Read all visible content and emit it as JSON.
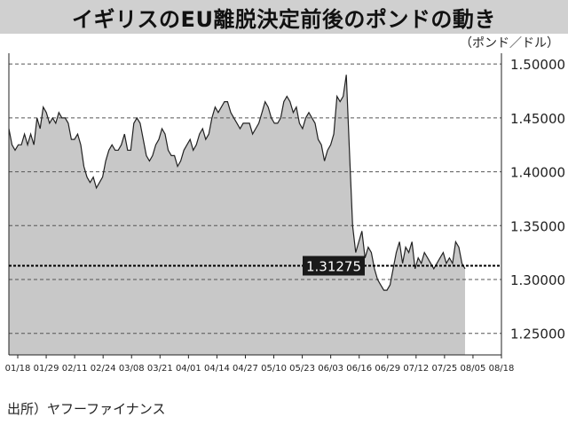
{
  "header": {
    "title": "イギリスのEU離脱決定前後のポンドの動き",
    "unit": "（ポンド／ドル）",
    "source": "出所）ヤフーファイナンス"
  },
  "colors": {
    "area_fill": "#c8c8c8",
    "line": "#222222",
    "grid": "#555555",
    "title_bg": "#d0d0d0",
    "label_bg": "#1a1a1a",
    "label_text": "#ffffff"
  },
  "chart_data": {
    "type": "area",
    "title": "イギリスのEU離脱決定前後のポンドの動き",
    "ylabel": "（ポンド／ドル）",
    "xlabel": "",
    "ylim": [
      1.23,
      1.51
    ],
    "yticks": [
      1.25,
      1.3,
      1.35,
      1.4,
      1.45,
      1.5
    ],
    "ytick_labels": [
      "1.25000",
      "1.30000",
      "1.35000",
      "1.40000",
      "1.45000",
      "1.50000"
    ],
    "xticks": [
      "01/18",
      "01/29",
      "02/11",
      "02/24",
      "03/08",
      "03/21",
      "04/01",
      "04/14",
      "04/27",
      "05/10",
      "05/23",
      "06/03",
      "06/16",
      "06/29",
      "07/12",
      "07/25",
      "08/05",
      "08/18"
    ],
    "grid": true,
    "reference_line": {
      "value": 1.31275,
      "label": "1.31275"
    },
    "y": [
      1.44,
      1.425,
      1.42,
      1.425,
      1.425,
      1.435,
      1.425,
      1.435,
      1.425,
      1.45,
      1.44,
      1.46,
      1.455,
      1.445,
      1.45,
      1.445,
      1.455,
      1.45,
      1.45,
      1.445,
      1.43,
      1.43,
      1.435,
      1.425,
      1.405,
      1.395,
      1.39,
      1.395,
      1.385,
      1.39,
      1.395,
      1.41,
      1.42,
      1.425,
      1.42,
      1.42,
      1.425,
      1.435,
      1.42,
      1.42,
      1.445,
      1.45,
      1.445,
      1.43,
      1.415,
      1.41,
      1.415,
      1.425,
      1.43,
      1.44,
      1.435,
      1.42,
      1.415,
      1.415,
      1.405,
      1.41,
      1.42,
      1.425,
      1.43,
      1.42,
      1.425,
      1.435,
      1.44,
      1.43,
      1.435,
      1.45,
      1.46,
      1.455,
      1.46,
      1.465,
      1.465,
      1.455,
      1.45,
      1.445,
      1.44,
      1.445,
      1.445,
      1.445,
      1.435,
      1.44,
      1.445,
      1.455,
      1.465,
      1.46,
      1.45,
      1.445,
      1.445,
      1.45,
      1.465,
      1.47,
      1.465,
      1.455,
      1.46,
      1.445,
      1.44,
      1.45,
      1.455,
      1.45,
      1.445,
      1.43,
      1.425,
      1.41,
      1.42,
      1.425,
      1.435,
      1.47,
      1.465,
      1.47,
      1.49,
      1.42,
      1.35,
      1.325,
      1.335,
      1.345,
      1.32,
      1.33,
      1.325,
      1.31,
      1.3,
      1.295,
      1.29,
      1.29,
      1.295,
      1.31,
      1.325,
      1.335,
      1.315,
      1.33,
      1.325,
      1.335,
      1.31,
      1.32,
      1.315,
      1.325,
      1.32,
      1.315,
      1.31,
      1.315,
      1.32,
      1.325,
      1.315,
      1.32,
      1.315,
      1.335,
      1.33,
      1.315,
      1.31
    ]
  }
}
